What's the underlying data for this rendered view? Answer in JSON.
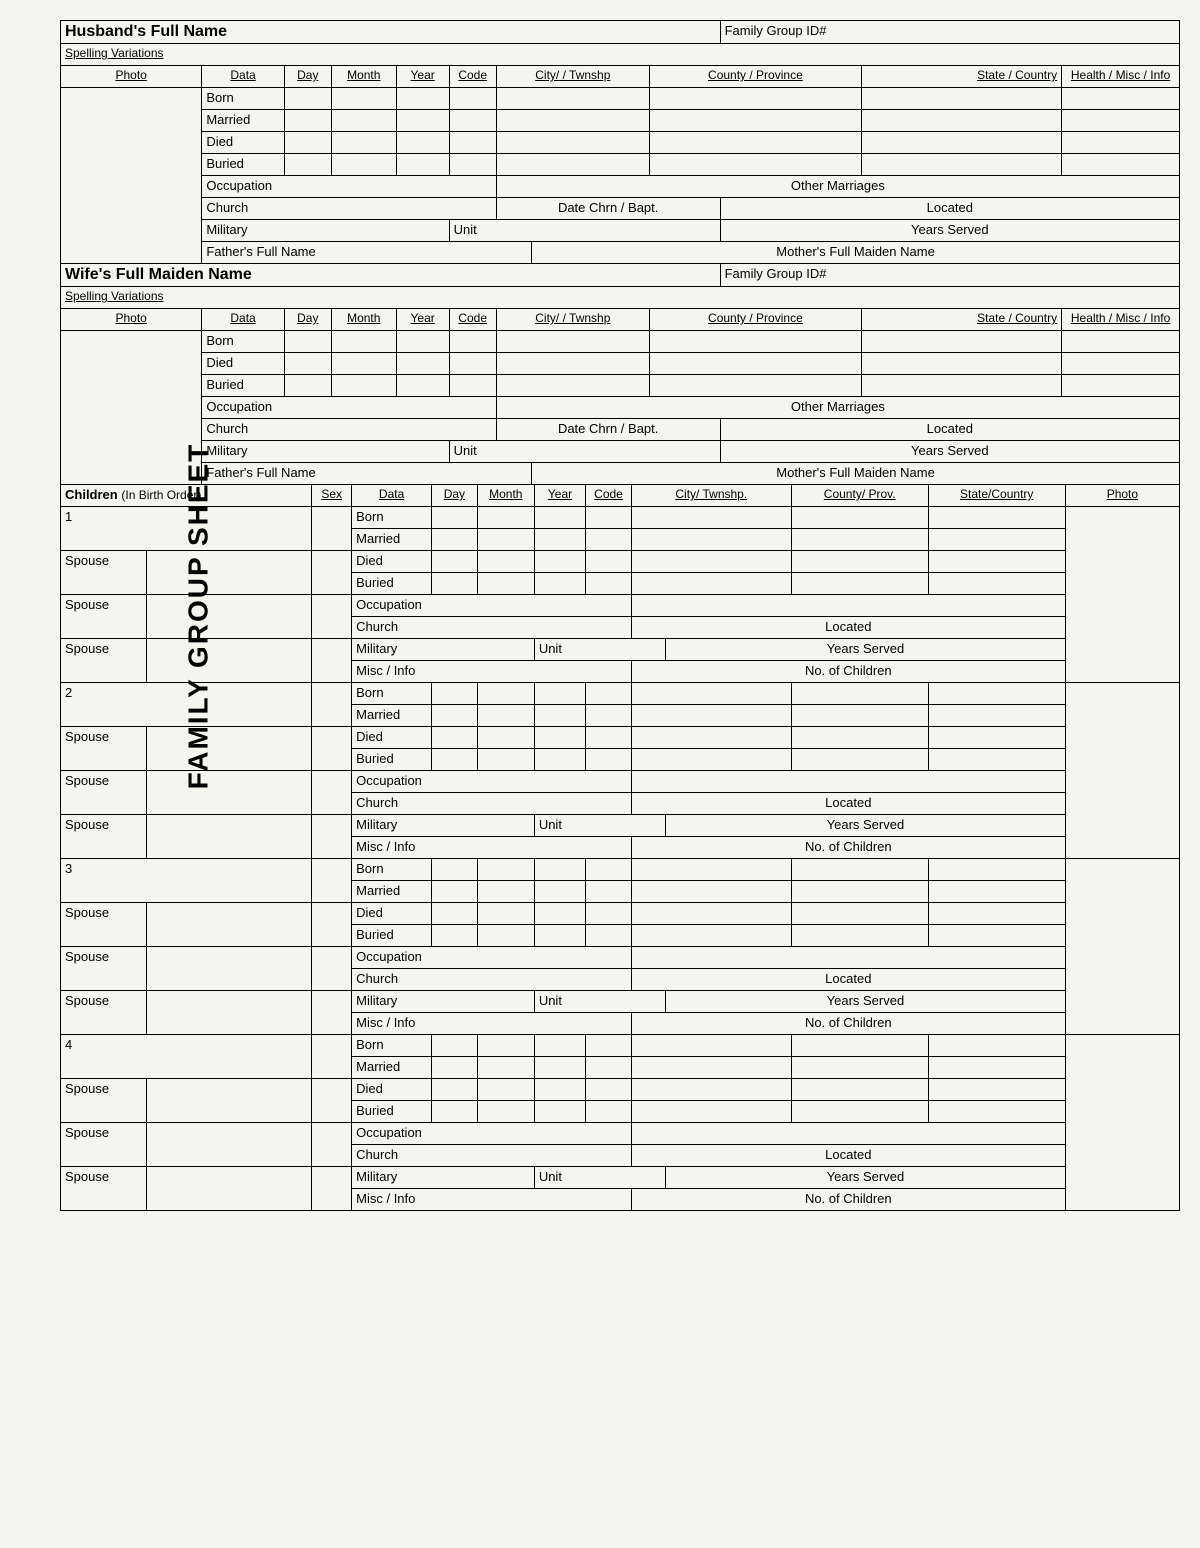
{
  "vtitle": "FAMILY GROUP SHEET",
  "husband_title": "Husband's Full Name",
  "wife_title": "Wife's Full Maiden Name",
  "family_group_id": "Family Group ID#",
  "spelling_variations": "Spelling Variations",
  "photo": "Photo",
  "cols": {
    "data": "Data",
    "day": "Day",
    "month": "Month",
    "year": "Year",
    "code": "Code",
    "city": "City/ / Twnshp",
    "county": "County / Province",
    "state": "State / Country",
    "health": "Health / Misc / Info"
  },
  "rows": {
    "born": "Born",
    "married": "Married",
    "died": "Died",
    "buried": "Buried",
    "occupation": "Occupation",
    "other_marriages": "Other Marriages",
    "church": "Church",
    "date_chrn": "Date Chrn / Bapt.",
    "located": "Located",
    "military": "Military",
    "unit": "Unit",
    "years_served": "Years Served",
    "father": "Father's Full Name",
    "mother": "Mother's Full Maiden Name"
  },
  "children_title": "Children",
  "children_sub": "(In Birth Order)",
  "ccols": {
    "sex": "Sex",
    "data": "Data",
    "day": "Day",
    "month": "Month",
    "year": "Year",
    "code": "Code",
    "city": "City/ Twnshp.",
    "county": "County/ Prov.",
    "state": "State/Country",
    "photo": "Photo"
  },
  "crows": {
    "born": "Born",
    "married": "Married",
    "died": "Died",
    "buried": "Buried",
    "occupation": "Occupation",
    "church": "Church",
    "located": "Located",
    "military": "Military",
    "unit": "Unit",
    "years_served": "Years Served",
    "misc": "Misc / Info",
    "no_children": "No. of Children",
    "spouse": "Spouse"
  },
  "child_numbers": [
    "1",
    "2",
    "3",
    "4"
  ]
}
